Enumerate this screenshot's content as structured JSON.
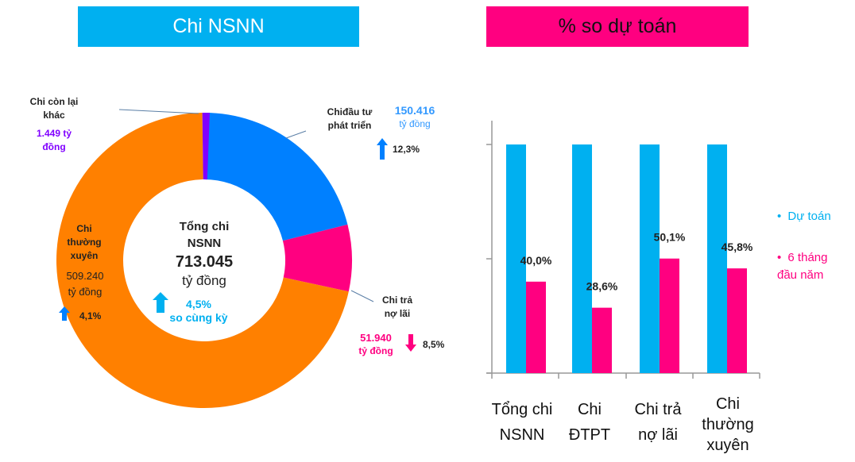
{
  "headers": {
    "left": "Chi NSNN",
    "right": "% so dự toán"
  },
  "colors": {
    "cyan": "#00B0F0",
    "pink": "#FF0080",
    "blue": "#0080FF",
    "orange": "#FF8000",
    "purple": "#8000FF"
  },
  "chart_data": [
    {
      "type": "pie",
      "title": "Chi NSNN",
      "center": {
        "line1": "Tổng chi",
        "line2": "NSNN",
        "value": "713.045",
        "unit": "tỷ đồng",
        "change": "4,5%",
        "change_note": "so cùng kỳ",
        "direction": "up"
      },
      "slices": [
        {
          "name": "Chi đầu tư phát triển",
          "label_line1": "Chiđầu tư",
          "label_line2": "phát triển",
          "value": 150416,
          "value_text": "150.416",
          "unit": "tỷ đồng",
          "change": "12,3%",
          "direction": "up",
          "color": "#0080FF"
        },
        {
          "name": "Chi trả nợ lãi",
          "label_line1": "Chi trả",
          "label_line2": "nợ lãi",
          "value": 51940,
          "value_text": "51.940",
          "unit": "tỷ đồng",
          "change": "8,5%",
          "direction": "down",
          "color": "#FF0080"
        },
        {
          "name": "Chi thường xuyên",
          "label_line1": "Chi",
          "label_line2": "thường",
          "label_line3": "xuyên",
          "value": 509240,
          "value_text": "509.240",
          "unit": "tỷ đồng",
          "change": "4,1%",
          "direction": "up",
          "color": "#FF8000"
        },
        {
          "name": "Chi còn lại khác",
          "label_line1": "Chi còn lại",
          "label_line2": "khác",
          "value": 1449,
          "value_text": "1.449 tỷ",
          "unit": "đồng",
          "color": "#8000FF"
        }
      ]
    },
    {
      "type": "bar",
      "title": "% so dự toán",
      "categories": [
        "Tổng chi NSNN",
        "Chi ĐTPT",
        "Chi trả nợ lãi",
        "Chi thường xuyên"
      ],
      "category_lines": [
        [
          "Tổng chi",
          "NSNN"
        ],
        [
          "Chi",
          "ĐTPT"
        ],
        [
          "Chi trả",
          "nợ lãi"
        ],
        [
          "Chi",
          "thường",
          "xuyên"
        ]
      ],
      "series": [
        {
          "name": "Dự toán",
          "values": [
            100,
            100,
            100,
            100
          ],
          "color": "#00B0F0"
        },
        {
          "name": "6 tháng đầu năm",
          "values": [
            40.0,
            28.6,
            50.1,
            45.8
          ],
          "labels": [
            "40,0%",
            "28,6%",
            "50,1%",
            "45,8%"
          ],
          "color": "#FF0080"
        }
      ],
      "legend": [
        "Dự toán",
        "6 tháng đầu năm"
      ],
      "legend_lines": [
        "6 tháng",
        "đầu năm"
      ],
      "ylim": [
        0,
        100
      ],
      "legend_position": "right"
    }
  ]
}
